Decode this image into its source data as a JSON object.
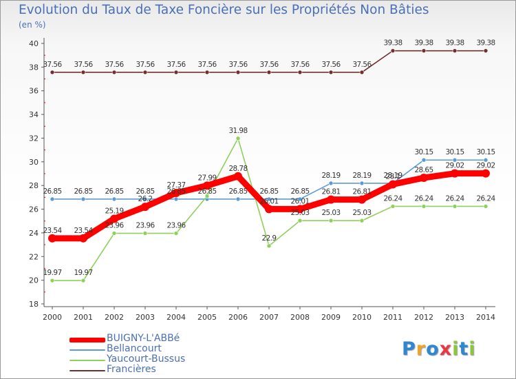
{
  "chart_data": {
    "type": "line",
    "title": "Evolution du Taux de Taxe Foncière sur les Propriétés Non Bâties",
    "ylabel": "(en %)",
    "xlabel": "",
    "ylim": [
      18,
      40
    ],
    "yticks": [
      18,
      20,
      22,
      24,
      26,
      28,
      30,
      32,
      34,
      36,
      38,
      40
    ],
    "categories": [
      "2000",
      "2001",
      "2002",
      "2003",
      "2004",
      "2005",
      "2006",
      "2007",
      "2008",
      "2009",
      "2010",
      "2011",
      "2012",
      "2013",
      "2014"
    ],
    "series": [
      {
        "name": "Francières",
        "color": "#722f2f",
        "values": [
          37.56,
          37.56,
          37.56,
          37.56,
          37.56,
          37.56,
          37.56,
          37.56,
          37.56,
          37.56,
          37.56,
          39.38,
          39.38,
          39.38,
          39.38
        ],
        "labels": [
          "37.56",
          "37.56",
          "37.56",
          "37.56",
          "37.56",
          "37.56",
          "37.56",
          "37.56",
          "37.56",
          "37.56",
          "37.56",
          "39.38",
          "39.38",
          "39.38",
          "39.38"
        ]
      },
      {
        "name": "Bellancourt",
        "color": "#5b9bd5",
        "values": [
          26.85,
          26.85,
          26.85,
          26.85,
          26.85,
          26.85,
          26.85,
          26.85,
          26.85,
          28.19,
          28.19,
          28.19,
          30.15,
          30.15,
          30.15
        ],
        "labels": [
          "26.85",
          "26.85",
          "26.85",
          "26.85",
          "26.85",
          "26.85",
          "26.85",
          "26.85",
          "26.85",
          "28.19",
          "28.19",
          "28.19",
          "30.15",
          "30.15",
          "30.15"
        ]
      },
      {
        "name": "Yaucourt-Bussus",
        "color": "#8ed05a",
        "values": [
          19.97,
          19.97,
          23.96,
          23.96,
          23.96,
          27.1,
          31.98,
          22.9,
          25.03,
          25.03,
          25.03,
          26.24,
          26.24,
          26.24,
          26.24
        ],
        "labels": [
          "19.97",
          "19.97",
          "23.96",
          "23.96",
          "23.96",
          "",
          "31.98",
          "22.9",
          "25.03",
          "25.03",
          "25.03",
          "26.24",
          "26.24",
          "26.24",
          "26.24"
        ]
      },
      {
        "name": "BUIGNY-L'ABBé",
        "color": "#ff0000",
        "values": [
          23.54,
          23.54,
          25.19,
          26.2,
          27.37,
          27.99,
          28.78,
          26.01,
          26.01,
          26.81,
          26.81,
          28.1,
          28.65,
          29.02,
          29.02
        ],
        "labels": [
          "23.54",
          "23.54",
          "25.19",
          "26.2",
          "27.37",
          "27.99",
          "28.78",
          "26.01",
          "26.01",
          "26.81",
          "26.81",
          "28.1",
          "28.65",
          "29.02",
          "29.02"
        ]
      }
    ],
    "legend": [
      "BUIGNY-L'ABBé",
      "Bellancourt",
      "Yaucourt-Bussus",
      "Francières"
    ],
    "legend_position": "bottom-left",
    "grid": false
  },
  "legend_items": [
    {
      "label": "BUIGNY-L'ABBé",
      "color": "#ff0000"
    },
    {
      "label": "Bellancourt",
      "color": "#5b9bd5"
    },
    {
      "label": "Yaucourt-Bussus",
      "color": "#8ed05a"
    },
    {
      "label": "Francières",
      "color": "#722f2f"
    }
  ],
  "logo": {
    "letters": [
      "P",
      "r",
      "o",
      "x",
      "i",
      "t",
      "i"
    ],
    "colors": [
      "#2f87d0",
      "#f2a22b",
      "#2f87d0",
      "#e9383f",
      "#8cc63f",
      "#2f87d0",
      "#8cc63f"
    ]
  }
}
